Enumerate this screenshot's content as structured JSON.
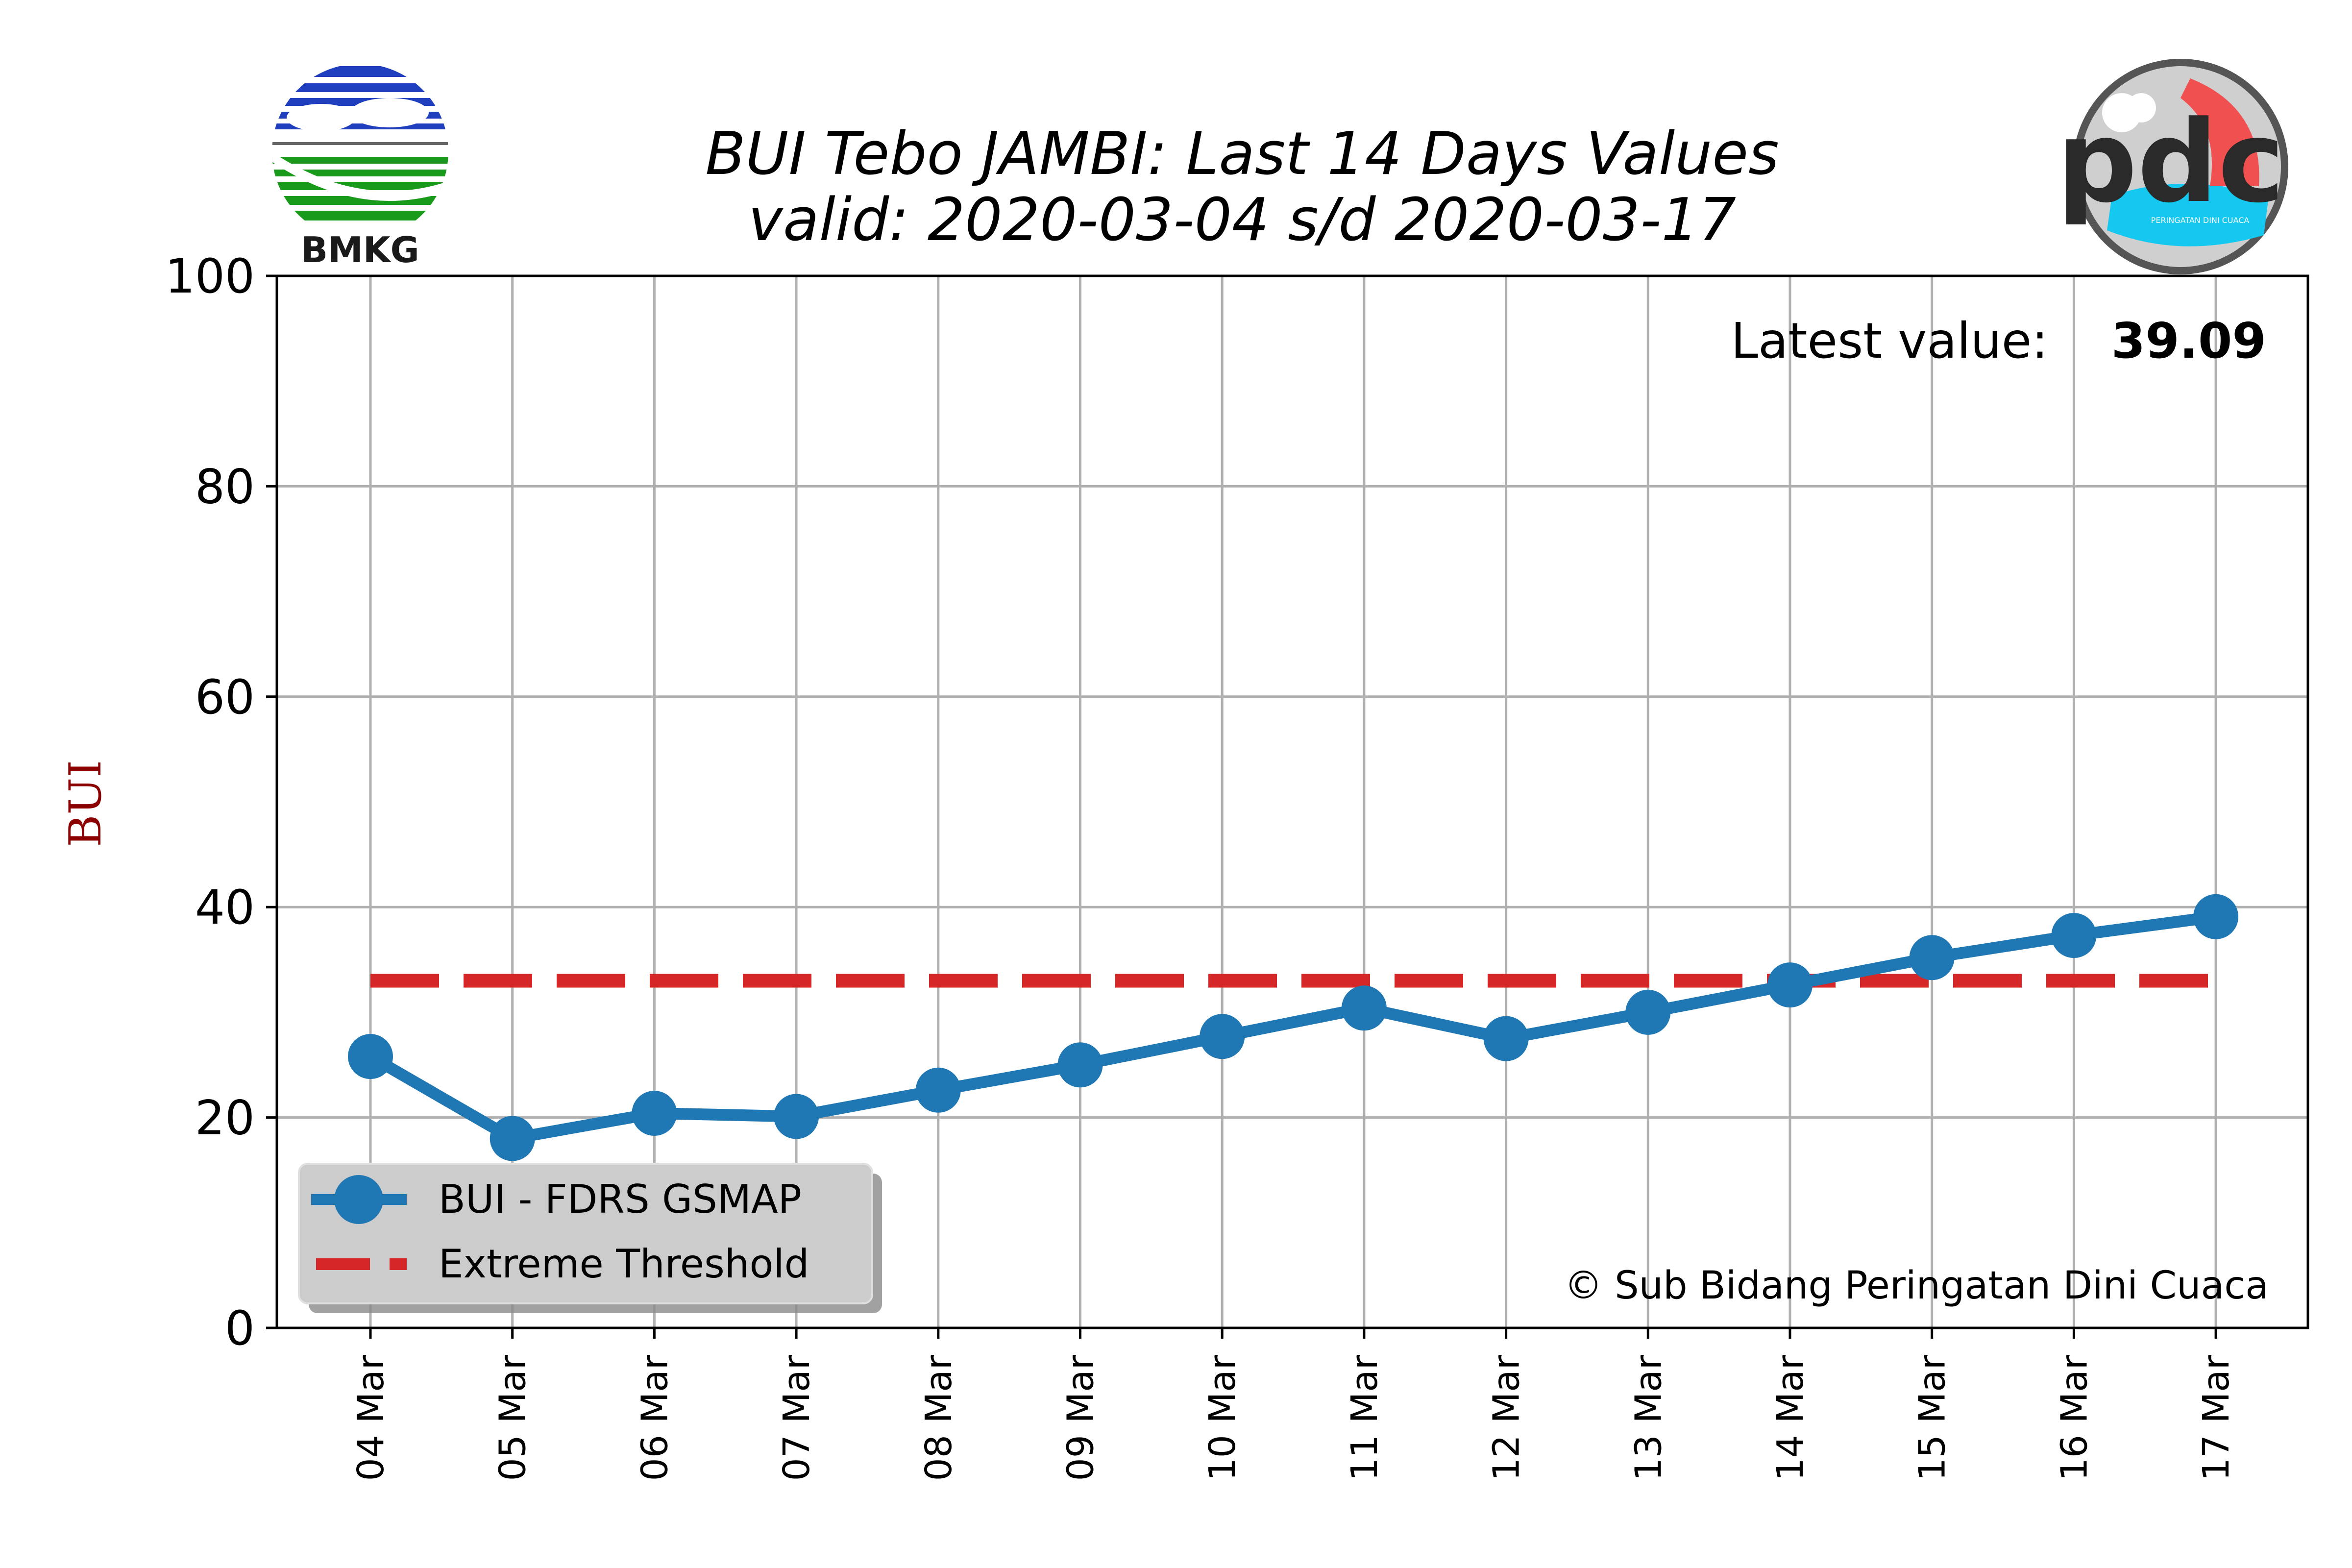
{
  "chart_data": {
    "type": "line",
    "title": "BUI Tebo JAMBI: Last 14 Days Values",
    "subtitle": "valid: 2020-03-04 s/d 2020-03-17",
    "ylabel": "BUI",
    "xlabel": "",
    "ylim": [
      0,
      100
    ],
    "yticks": [
      0,
      20,
      40,
      60,
      80,
      100
    ],
    "grid": true,
    "legend_position": "bottom-left",
    "categories": [
      "04 Mar",
      "05 Mar",
      "06 Mar",
      "07 Mar",
      "08 Mar",
      "09 Mar",
      "10 Mar",
      "11 Mar",
      "12 Mar",
      "13 Mar",
      "14 Mar",
      "15 Mar",
      "16 Mar",
      "17 Mar"
    ],
    "series": [
      {
        "name": "BUI - FDRS GSMAP",
        "color": "#1f77b4",
        "style": "line-marker",
        "values": [
          25.8,
          18.0,
          20.4,
          20.1,
          22.6,
          25.0,
          27.7,
          30.4,
          27.5,
          30.0,
          32.6,
          35.2,
          37.3,
          39.09
        ]
      },
      {
        "name": "Extreme Threshold",
        "color": "#d62728",
        "style": "dashed",
        "values": [
          33,
          33,
          33,
          33,
          33,
          33,
          33,
          33,
          33,
          33,
          33,
          33,
          33,
          33
        ]
      }
    ],
    "annotations": {
      "latest_label": "Latest value:",
      "latest_value": "39.09",
      "copyright": "© Sub Bidang Peringatan Dini Cuaca"
    }
  },
  "logos": {
    "left_logo_text": "BMKG",
    "right_logo_text": "PERINGATAN DINI CUACA"
  },
  "colors": {
    "axis_label": "#8b0000",
    "grid": "#b0b0b0",
    "bmkg_blue": "#1f3fbf",
    "bmkg_green": "#1a9a1a"
  }
}
